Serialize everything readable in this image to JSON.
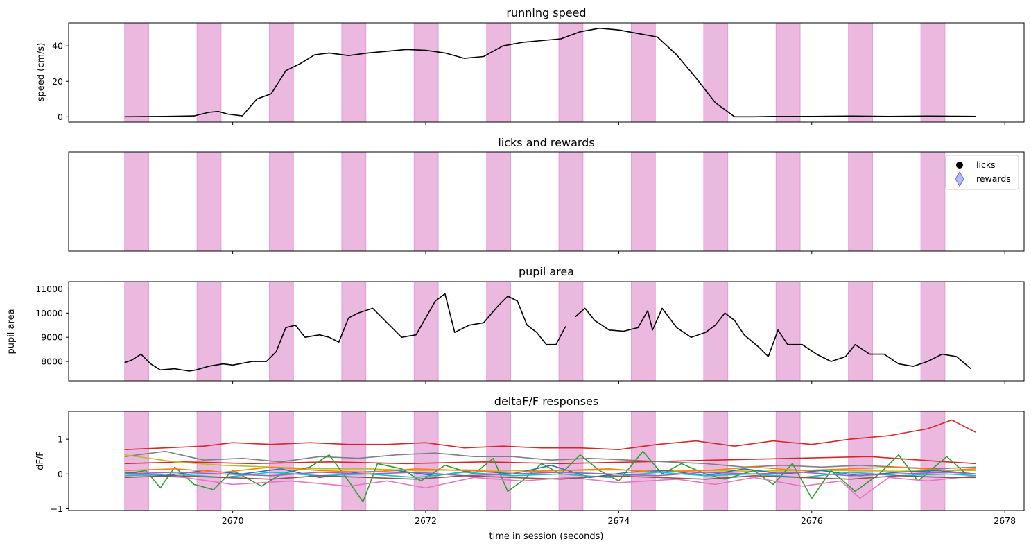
{
  "chart_data": {
    "type": "line",
    "shared_x": {
      "xlabel": "time in session (seconds)",
      "xlim": [
        2668.3,
        2678.2
      ],
      "xticks": [
        "2670",
        "2672",
        "2674",
        "2676",
        "2678"
      ]
    },
    "stimulus_blocks": {
      "color": "#dd88cc",
      "intervals": [
        [
          2668.88,
          2669.13
        ],
        [
          2669.63,
          2669.88
        ],
        [
          2670.38,
          2670.63
        ],
        [
          2671.13,
          2671.38
        ],
        [
          2671.88,
          2672.13
        ],
        [
          2672.63,
          2672.88
        ],
        [
          2673.38,
          2673.63
        ],
        [
          2674.13,
          2674.38
        ],
        [
          2674.88,
          2675.13
        ],
        [
          2675.63,
          2675.88
        ],
        [
          2676.38,
          2676.63
        ],
        [
          2677.13,
          2677.38
        ]
      ]
    },
    "panels": [
      {
        "id": "speed",
        "title": "running speed",
        "ylabel": "speed (cm/s)",
        "ylim": [
          -3,
          53
        ],
        "yticks": [
          "0",
          "20",
          "40"
        ],
        "series": [
          {
            "color": "#000000",
            "x": [
              2668.88,
              2669.3,
              2669.6,
              2669.75,
              2669.85,
              2669.95,
              2670.1,
              2670.25,
              2670.4,
              2670.55,
              2670.7,
              2670.85,
              2671.0,
              2671.2,
              2671.4,
              2671.6,
              2671.8,
              2672.0,
              2672.2,
              2672.4,
              2672.6,
              2672.8,
              2673.0,
              2673.2,
              2673.4,
              2673.6,
              2673.8,
              2674.0,
              2674.2,
              2674.4,
              2674.6,
              2674.8,
              2675.0,
              2675.2,
              2675.4,
              2675.6,
              2676.0,
              2676.4,
              2676.8,
              2677.2,
              2677.7
            ],
            "y": [
              0,
              0.2,
              0.5,
              2.5,
              3,
              1.5,
              0.5,
              10,
              13,
              26,
              30,
              35,
              36,
              34.5,
              36,
              37,
              38,
              37.5,
              36,
              33,
              34,
              40,
              42,
              43,
              44,
              48,
              50,
              49,
              47,
              45,
              35,
              22,
              8,
              0,
              0,
              0.2,
              0.2,
              0.4,
              0.2,
              0.4,
              0.2
            ]
          }
        ]
      },
      {
        "id": "licks",
        "title": "licks and rewards",
        "legend": {
          "placement": "top-right",
          "entries": [
            {
              "label": "licks",
              "marker": "circle",
              "color": "#000000"
            },
            {
              "label": "rewards",
              "marker": "diamond",
              "color": "#8888ee"
            }
          ]
        },
        "series": []
      },
      {
        "id": "pupil",
        "title": "pupil area",
        "ylabel": "pupil area",
        "ylim": [
          7200,
          11300
        ],
        "yticks": [
          "8000",
          "9000",
          "10000",
          "11000"
        ],
        "series": [
          {
            "color": "#000000",
            "x": [
              2668.88,
              2668.95,
              2669.05,
              2669.15,
              2669.25,
              2669.4,
              2669.55,
              2669.62,
              2669.75,
              2669.9,
              2670.0,
              2670.2,
              2670.35,
              2670.45,
              2670.55,
              2670.65,
              2670.75,
              2670.9,
              2671.0,
              2671.1,
              2671.2,
              2671.3,
              2671.45,
              2671.6,
              2671.75,
              2671.9,
              2672.0,
              2672.1,
              2672.2,
              2672.3,
              2672.45,
              2672.6,
              2672.75,
              2672.85,
              2672.95,
              2673.05,
              2673.15,
              2673.25,
              2673.35,
              2673.45
            ],
            "y": [
              7950,
              8050,
              8300,
              7900,
              7650,
              7700,
              7600,
              7650,
              7800,
              7900,
              7850,
              8000,
              8000,
              8400,
              9400,
              9500,
              9000,
              9100,
              9000,
              8800,
              9800,
              10000,
              10200,
              9600,
              9000,
              9100,
              9800,
              10500,
              10800,
              9200,
              9500,
              9600,
              10300,
              10700,
              10500,
              9500,
              9200,
              8700,
              8700,
              9450
            ]
          },
          {
            "color": "#000000",
            "x": [
              2673.55,
              2673.65,
              2673.75,
              2673.9,
              2674.05,
              2674.2,
              2674.3,
              2674.35,
              2674.45,
              2674.6,
              2674.75,
              2674.9,
              2675.0,
              2675.1,
              2675.2,
              2675.3,
              2675.45,
              2675.55,
              2675.65,
              2675.75,
              2675.9,
              2676.05,
              2676.2,
              2676.35,
              2676.45,
              2676.6,
              2676.75,
              2676.9,
              2677.05,
              2677.2,
              2677.35,
              2677.5,
              2677.65
            ],
            "y": [
              9850,
              10200,
              9700,
              9300,
              9250,
              9400,
              10100,
              9300,
              10200,
              9400,
              9000,
              9200,
              9500,
              10000,
              9700,
              9100,
              8600,
              8200,
              9300,
              8700,
              8700,
              8300,
              8000,
              8200,
              8700,
              8300,
              8300,
              7900,
              7800,
              8000,
              8300,
              8200,
              7700
            ]
          }
        ]
      },
      {
        "id": "dff",
        "title": "deltaF/F responses",
        "ylabel": "dF/F",
        "ylim": [
          -1.05,
          1.8
        ],
        "yticks": [
          "−1",
          "0",
          "1"
        ],
        "series": [
          {
            "color": "#d62728",
            "x": [
              2668.88,
              2669.3,
              2669.7,
              2670.0,
              2670.4,
              2670.8,
              2671.2,
              2671.6,
              2672.0,
              2672.4,
              2672.8,
              2673.2,
              2673.6,
              2674.0,
              2674.4,
              2674.8,
              2675.2,
              2675.6,
              2676.0,
              2676.4,
              2676.8,
              2677.2,
              2677.45,
              2677.7
            ],
            "y": [
              0.7,
              0.75,
              0.8,
              0.9,
              0.85,
              0.9,
              0.85,
              0.85,
              0.9,
              0.75,
              0.8,
              0.75,
              0.75,
              0.7,
              0.85,
              0.95,
              0.8,
              0.95,
              0.85,
              1.0,
              1.1,
              1.3,
              1.55,
              1.2
            ]
          },
          {
            "color": "#d62728",
            "x": [
              2668.88,
              2669.5,
              2670.2,
              2671.0,
              2671.8,
              2672.6,
              2673.4,
              2674.2,
              2675.0,
              2675.8,
              2676.6,
              2677.4,
              2677.7
            ],
            "y": [
              0.3,
              0.35,
              0.3,
              0.35,
              0.3,
              0.35,
              0.3,
              0.35,
              0.4,
              0.45,
              0.5,
              0.35,
              0.3
            ]
          },
          {
            "color": "#7f7f7f",
            "x": [
              2668.88,
              2669.3,
              2669.7,
              2670.1,
              2670.5,
              2670.9,
              2671.3,
              2671.7,
              2672.1,
              2672.5,
              2672.9,
              2673.3,
              2673.7,
              2674.1,
              2674.5,
              2674.9,
              2675.3,
              2675.7,
              2676.1,
              2676.5,
              2676.9,
              2677.3,
              2677.7
            ],
            "y": [
              0.5,
              0.65,
              0.4,
              0.45,
              0.35,
              0.5,
              0.45,
              0.55,
              0.6,
              0.5,
              0.5,
              0.4,
              0.45,
              0.4,
              0.35,
              0.3,
              0.2,
              0.25,
              0.2,
              0.25,
              0.2,
              0.15,
              0.2
            ]
          },
          {
            "color": "#bcbd22",
            "x": [
              2668.88,
              2669.4,
              2669.9,
              2670.4,
              2670.9,
              2671.4,
              2671.9,
              2672.4,
              2672.9,
              2673.4,
              2673.9,
              2674.4,
              2674.9,
              2675.4,
              2675.9,
              2676.4,
              2676.9,
              2677.4,
              2677.7
            ],
            "y": [
              0.55,
              0.35,
              0.25,
              0.2,
              0.15,
              0.15,
              0.1,
              0.12,
              0.1,
              0.1,
              0.12,
              0.1,
              0.1,
              0.08,
              0.1,
              0.1,
              0.08,
              0.1,
              0.1
            ]
          },
          {
            "color": "#2ca02c",
            "x": [
              2668.88,
              2669.1,
              2669.25,
              2669.4,
              2669.6,
              2669.8,
              2670.0,
              2670.3,
              2670.5,
              2670.8,
              2671.0,
              2671.2,
              2671.35,
              2671.5,
              2671.75,
              2671.95,
              2672.2,
              2672.5,
              2672.7,
              2672.85,
              2673.0,
              2673.2,
              2673.4,
              2673.6,
              2673.8,
              2674.0,
              2674.25,
              2674.45,
              2674.65,
              2674.9,
              2675.1,
              2675.4,
              2675.6,
              2675.8,
              2676.0,
              2676.2,
              2676.45,
              2676.7,
              2676.9,
              2677.1,
              2677.4,
              2677.6,
              2677.7
            ],
            "y": [
              0.0,
              0.1,
              -0.4,
              0.2,
              -0.3,
              -0.45,
              0.1,
              -0.35,
              0.0,
              0.2,
              0.55,
              -0.2,
              -0.8,
              0.3,
              0.15,
              -0.2,
              0.25,
              0.0,
              0.45,
              -0.5,
              -0.2,
              0.3,
              0.0,
              0.55,
              0.1,
              -0.2,
              0.65,
              0.0,
              0.3,
              0.0,
              -0.15,
              0.1,
              -0.3,
              0.3,
              -0.7,
              0.1,
              -0.5,
              0.0,
              0.55,
              -0.2,
              0.5,
              0.0,
              0.0
            ]
          },
          {
            "color": "#e377c2",
            "x": [
              2668.88,
              2669.5,
              2670.0,
              2670.6,
              2671.2,
              2671.6,
              2672.0,
              2672.5,
              2673.0,
              2673.5,
              2674.0,
              2674.6,
              2675.0,
              2675.4,
              2675.9,
              2676.3,
              2676.5,
              2676.8,
              2677.2,
              2677.7
            ],
            "y": [
              0.0,
              -0.1,
              -0.3,
              -0.2,
              -0.35,
              -0.2,
              -0.4,
              -0.1,
              -0.2,
              -0.1,
              -0.25,
              -0.15,
              -0.3,
              -0.1,
              -0.35,
              -0.2,
              -0.7,
              -0.1,
              -0.2,
              -0.05
            ]
          },
          {
            "color": "#1f77b4",
            "x": [
              2668.88,
              2669.3,
              2669.7,
              2670.1,
              2670.5,
              2670.9,
              2671.3,
              2671.7,
              2672.1,
              2672.5,
              2672.9,
              2673.3,
              2673.7,
              2674.1,
              2674.5,
              2674.9,
              2675.3,
              2675.7,
              2676.1,
              2676.5,
              2676.9,
              2677.3,
              2677.7
            ],
            "y": [
              0.05,
              -0.05,
              0.1,
              0.0,
              0.15,
              -0.1,
              0.05,
              0.1,
              -0.05,
              0.1,
              0.0,
              0.25,
              -0.1,
              0.05,
              0.1,
              -0.05,
              0.15,
              0.0,
              0.1,
              -0.05,
              0.05,
              0.1,
              0.0
            ]
          },
          {
            "color": "#ff7f0e",
            "x": [
              2668.88,
              2669.4,
              2669.9,
              2670.4,
              2670.9,
              2671.4,
              2671.9,
              2672.4,
              2672.9,
              2673.4,
              2673.9,
              2674.4,
              2674.9,
              2675.4,
              2675.9,
              2676.4,
              2676.9,
              2677.4,
              2677.7
            ],
            "y": [
              0.1,
              0.15,
              0.05,
              0.2,
              0.1,
              0.05,
              0.15,
              0.1,
              0.05,
              0.1,
              0.15,
              0.05,
              0.1,
              0.2,
              0.1,
              0.15,
              0.2,
              0.1,
              0.15
            ]
          },
          {
            "color": "#17becf",
            "x": [
              2668.88,
              2669.4,
              2669.9,
              2670.4,
              2670.9,
              2671.4,
              2671.9,
              2672.4,
              2672.9,
              2673.4,
              2673.9,
              2674.4,
              2674.9,
              2675.4,
              2675.9,
              2676.4,
              2676.9,
              2677.4,
              2677.7
            ],
            "y": [
              -0.05,
              0.0,
              -0.1,
              0.05,
              -0.05,
              0.0,
              -0.1,
              0.05,
              -0.05,
              0.0,
              -0.1,
              0.05,
              -0.05,
              0.0,
              -0.1,
              0.05,
              -0.05,
              0.0,
              -0.05
            ]
          },
          {
            "color": "#9467bd",
            "x": [
              2668.88,
              2669.4,
              2669.9,
              2670.4,
              2670.9,
              2671.4,
              2671.9,
              2672.4,
              2672.9,
              2673.4,
              2673.9,
              2674.4,
              2674.9,
              2675.4,
              2675.9,
              2676.4,
              2676.9,
              2677.4,
              2677.7
            ],
            "y": [
              0.0,
              0.05,
              0.0,
              -0.05,
              0.05,
              0.0,
              0.05,
              -0.05,
              0.0,
              0.05,
              0.0,
              -0.05,
              0.05,
              0.0,
              0.05,
              -0.05,
              0.0,
              0.05,
              0.0
            ]
          },
          {
            "color": "#8c564b",
            "x": [
              2668.88,
              2669.4,
              2669.9,
              2670.4,
              2670.9,
              2671.4,
              2671.9,
              2672.4,
              2672.9,
              2673.4,
              2673.9,
              2674.4,
              2674.9,
              2675.4,
              2675.9,
              2676.4,
              2676.9,
              2677.4,
              2677.7
            ],
            "y": [
              -0.1,
              -0.05,
              -0.1,
              -0.15,
              -0.05,
              -0.1,
              -0.15,
              -0.05,
              -0.1,
              -0.15,
              -0.05,
              -0.1,
              -0.15,
              -0.05,
              -0.1,
              -0.15,
              -0.05,
              -0.1,
              -0.1
            ]
          }
        ]
      }
    ]
  }
}
